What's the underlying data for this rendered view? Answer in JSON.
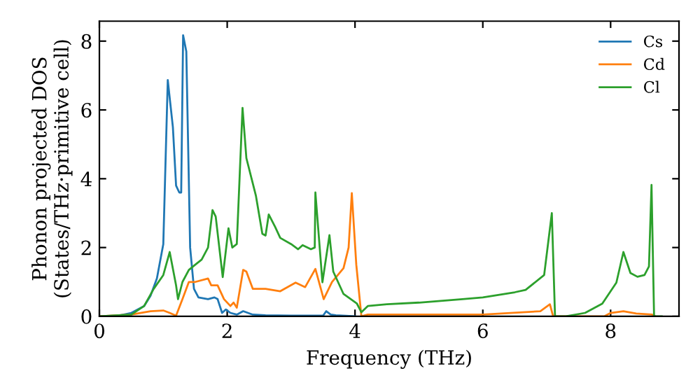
{
  "chart_data": {
    "type": "line",
    "xlabel": "Frequency (THz)",
    "ylabel": "Phonon projected DOS\n(States/THz·primitive cell)",
    "xlim": [
      0,
      9.07
    ],
    "ylim": [
      0,
      8.58
    ],
    "xticks": [
      0,
      2,
      4,
      6,
      8
    ],
    "yticks": [
      0,
      2,
      4,
      6,
      8
    ],
    "grid": false,
    "legend": "top right",
    "marker": "none",
    "line_style": "solid",
    "series": [
      {
        "name": "Cs",
        "color": "#1f77b4",
        "x": [
          0,
          0.3,
          0.5,
          0.7,
          0.8,
          0.9,
          1.0,
          1.07,
          1.15,
          1.2,
          1.25,
          1.28,
          1.31,
          1.36,
          1.42,
          1.48,
          1.55,
          1.7,
          1.8,
          1.85,
          1.92,
          1.98,
          2.05,
          2.15,
          2.25,
          2.4,
          2.6,
          3.0,
          3.5,
          3.55,
          3.62,
          3.7,
          4.0
        ],
        "values": [
          0,
          0.02,
          0.1,
          0.3,
          0.6,
          1.1,
          2.1,
          6.87,
          5.5,
          3.8,
          3.6,
          3.6,
          8.17,
          7.7,
          2.0,
          0.8,
          0.55,
          0.5,
          0.55,
          0.5,
          0.1,
          0.2,
          0.1,
          0.05,
          0.15,
          0.05,
          0.03,
          0.02,
          0.02,
          0.15,
          0.05,
          0.03,
          0
        ]
      },
      {
        "name": "Cd",
        "color": "#ff7f0e",
        "x": [
          0,
          0.5,
          0.8,
          1.0,
          1.1,
          1.2,
          1.3,
          1.4,
          1.5,
          1.7,
          1.75,
          1.85,
          1.95,
          2.05,
          2.1,
          2.15,
          2.25,
          2.3,
          2.4,
          2.6,
          2.83,
          3.07,
          3.22,
          3.38,
          3.51,
          3.64,
          3.82,
          3.9,
          3.95,
          4.02,
          4.1,
          4.2,
          5,
          6,
          6.9,
          7.05,
          7.1,
          7.9,
          8.0,
          8.2,
          8.4,
          8.65,
          8.7
        ],
        "values": [
          0,
          0.05,
          0.15,
          0.17,
          0.1,
          0.02,
          0.5,
          1.0,
          1.0,
          1.1,
          0.9,
          0.9,
          0.5,
          0.3,
          0.4,
          0.25,
          1.35,
          1.3,
          0.8,
          0.8,
          0.73,
          0.98,
          0.85,
          1.38,
          0.5,
          1.0,
          1.4,
          2.0,
          3.58,
          1.5,
          0,
          0.05,
          0.05,
          0.05,
          0.15,
          0.35,
          0,
          0,
          0.1,
          0.15,
          0.08,
          0.05,
          0
        ]
      },
      {
        "name": "Cl",
        "color": "#2ca02c",
        "x": [
          0,
          0.5,
          0.7,
          0.85,
          1.0,
          1.1,
          1.2,
          1.23,
          1.3,
          1.4,
          1.5,
          1.6,
          1.7,
          1.77,
          1.82,
          1.93,
          2.02,
          2.08,
          2.15,
          2.24,
          2.3,
          2.45,
          2.55,
          2.6,
          2.65,
          2.75,
          2.83,
          3.0,
          3.11,
          3.18,
          3.31,
          3.37,
          3.38,
          3.49,
          3.6,
          3.66,
          3.82,
          4.03,
          4.1,
          4.2,
          4.5,
          5.0,
          5.68,
          6.0,
          6.5,
          6.67,
          6.96,
          7.08,
          7.13,
          7.3,
          7.6,
          7.87,
          8.09,
          8.2,
          8.31,
          8.42,
          8.53,
          8.6,
          8.64,
          8.68,
          8.8
        ],
        "values": [
          0,
          0.05,
          0.3,
          0.8,
          1.2,
          1.87,
          0.9,
          0.5,
          1.0,
          1.35,
          1.5,
          1.65,
          2.0,
          3.09,
          2.9,
          1.14,
          2.56,
          2.0,
          2.1,
          6.06,
          4.6,
          3.5,
          2.4,
          2.35,
          2.96,
          2.6,
          2.28,
          2.1,
          1.95,
          2.07,
          1.95,
          2.0,
          3.6,
          0.99,
          2.36,
          1.3,
          0.65,
          0.37,
          0.12,
          0.3,
          0.35,
          0.4,
          0.5,
          0.55,
          0.7,
          0.77,
          1.2,
          3.0,
          0,
          0,
          0.1,
          0.37,
          0.98,
          1.87,
          1.26,
          1.15,
          1.2,
          1.45,
          3.82,
          0,
          0
        ]
      }
    ]
  }
}
